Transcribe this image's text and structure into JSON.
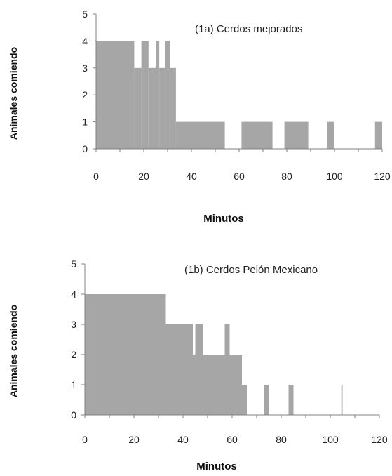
{
  "chart_data": [
    {
      "type": "bar",
      "title": "(1a) Cerdos mejorados",
      "xlabel": "Minutos",
      "ylabel": "Animales comiendo",
      "xlim": [
        0,
        120
      ],
      "ylim": [
        0,
        5
      ],
      "x_ticks": [
        "0",
        "20",
        "40",
        "60",
        "80",
        "100",
        "120"
      ],
      "y_ticks": [
        "0",
        "1",
        "2",
        "3",
        "4",
        "5"
      ],
      "bar_color": "#a6a6a6",
      "segments": [
        {
          "x_start": 0,
          "x_end": 16,
          "value": 4
        },
        {
          "x_start": 16,
          "x_end": 19,
          "value": 3
        },
        {
          "x_start": 19,
          "x_end": 22,
          "value": 4
        },
        {
          "x_start": 22,
          "x_end": 25,
          "value": 3
        },
        {
          "x_start": 25,
          "x_end": 26.5,
          "value": 4
        },
        {
          "x_start": 26.5,
          "x_end": 29,
          "value": 3
        },
        {
          "x_start": 29,
          "x_end": 31,
          "value": 4
        },
        {
          "x_start": 31,
          "x_end": 33.5,
          "value": 3
        },
        {
          "x_start": 33.5,
          "x_end": 54,
          "value": 1
        },
        {
          "x_start": 61,
          "x_end": 74,
          "value": 1
        },
        {
          "x_start": 79,
          "x_end": 89,
          "value": 1
        },
        {
          "x_start": 97,
          "x_end": 100,
          "value": 1
        },
        {
          "x_start": 117,
          "x_end": 120,
          "value": 1
        }
      ]
    },
    {
      "type": "bar",
      "title": "(1b) Cerdos Pelón Mexicano",
      "xlabel": "Minutos",
      "ylabel": "Animales comiendo",
      "xlim": [
        0,
        120
      ],
      "ylim": [
        0,
        5
      ],
      "x_ticks": [
        "0",
        "20",
        "40",
        "60",
        "80",
        "100",
        "120"
      ],
      "y_ticks": [
        "0",
        "1",
        "2",
        "3",
        "4",
        "5"
      ],
      "bar_color": "#a6a6a6",
      "segments": [
        {
          "x_start": 0,
          "x_end": 33,
          "value": 4
        },
        {
          "x_start": 33,
          "x_end": 44,
          "value": 3
        },
        {
          "x_start": 44,
          "x_end": 45,
          "value": 2
        },
        {
          "x_start": 45,
          "x_end": 48,
          "value": 3
        },
        {
          "x_start": 48,
          "x_end": 57,
          "value": 2
        },
        {
          "x_start": 57,
          "x_end": 59,
          "value": 3
        },
        {
          "x_start": 59,
          "x_end": 64,
          "value": 2
        },
        {
          "x_start": 64,
          "x_end": 66,
          "value": 1
        },
        {
          "x_start": 73,
          "x_end": 75,
          "value": 1
        },
        {
          "x_start": 83,
          "x_end": 85,
          "value": 1
        },
        {
          "x_start": 104.5,
          "x_end": 105,
          "value": 1
        }
      ]
    }
  ]
}
